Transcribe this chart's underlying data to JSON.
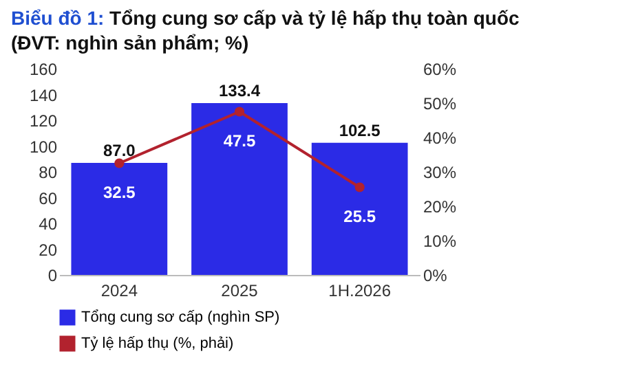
{
  "chart_data": {
    "type": "bar",
    "title": "Biểu đồ 1: Tổng cung sơ cấp và tỷ lệ hấp thụ toàn quốc",
    "subtitle": "(ĐVT: nghìn sản phẩm; %)",
    "categories": [
      "2024",
      "2025",
      "1H.2026"
    ],
    "series": [
      {
        "name": "Tổng cung sơ cấp (nghìn SP)",
        "color": "#2b2be6",
        "values": [
          87.0,
          133.4,
          102.5
        ],
        "value_labels": [
          "87.0",
          "133.4",
          "102.5"
        ]
      },
      {
        "name": "Tỷ lệ hấp thụ (%, phải)",
        "type": "line",
        "axis": "y2",
        "color": "#b2222e",
        "values": [
          32.5,
          47.5,
          25.5
        ],
        "value_labels": [
          "32.5",
          "47.5",
          "25.5"
        ]
      }
    ],
    "ylim": [
      0,
      160
    ],
    "yticks": [
      0,
      20,
      40,
      60,
      80,
      100,
      120,
      140,
      160
    ],
    "y2lim": [
      0,
      60
    ],
    "y2ticks": [
      {
        "value": 0,
        "label": "0%"
      },
      {
        "value": 10,
        "label": "10%"
      },
      {
        "value": 20,
        "label": "20%"
      },
      {
        "value": 30,
        "label": "30%"
      },
      {
        "value": 40,
        "label": "40%"
      },
      {
        "value": 50,
        "label": "50%"
      },
      {
        "value": 60,
        "label": "60%"
      }
    ],
    "legend": "bottom",
    "marker": "circle",
    "grid": false
  }
}
